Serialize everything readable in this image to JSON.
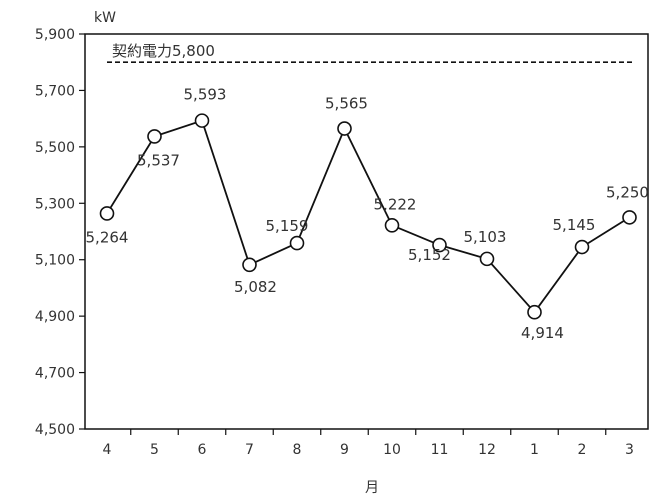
{
  "chart_data": {
    "type": "line",
    "categories": [
      "4",
      "5",
      "6",
      "7",
      "8",
      "9",
      "10",
      "11",
      "12",
      "1",
      "2",
      "3"
    ],
    "values": [
      5264,
      5537,
      5593,
      5082,
      5159,
      5565,
      5222,
      5152,
      5103,
      4914,
      5145,
      5250
    ],
    "data_labels": [
      "5,264",
      "5,537",
      "5,593",
      "5,082",
      "5,159",
      "5,565",
      "5,222",
      "5,152",
      "5,103",
      "4,914",
      "5,145",
      "5,250"
    ],
    "yticks": [
      4500,
      4700,
      4900,
      5100,
      5300,
      5500,
      5700,
      5900
    ],
    "ytick_labels": [
      "4,500",
      "4,700",
      "4,900",
      "5,100",
      "5,300",
      "5,500",
      "5,700",
      "5,900"
    ],
    "ylim": [
      4500,
      5900
    ],
    "ylabel": "kW",
    "xlabel": "月",
    "reference_line": {
      "value": 5800,
      "label": "契約電力5,800",
      "style": "dashed"
    },
    "grid": false,
    "legend": "none",
    "colors": {
      "line": "#111111",
      "marker_fill": "#ffffff",
      "text": "#333333"
    }
  }
}
